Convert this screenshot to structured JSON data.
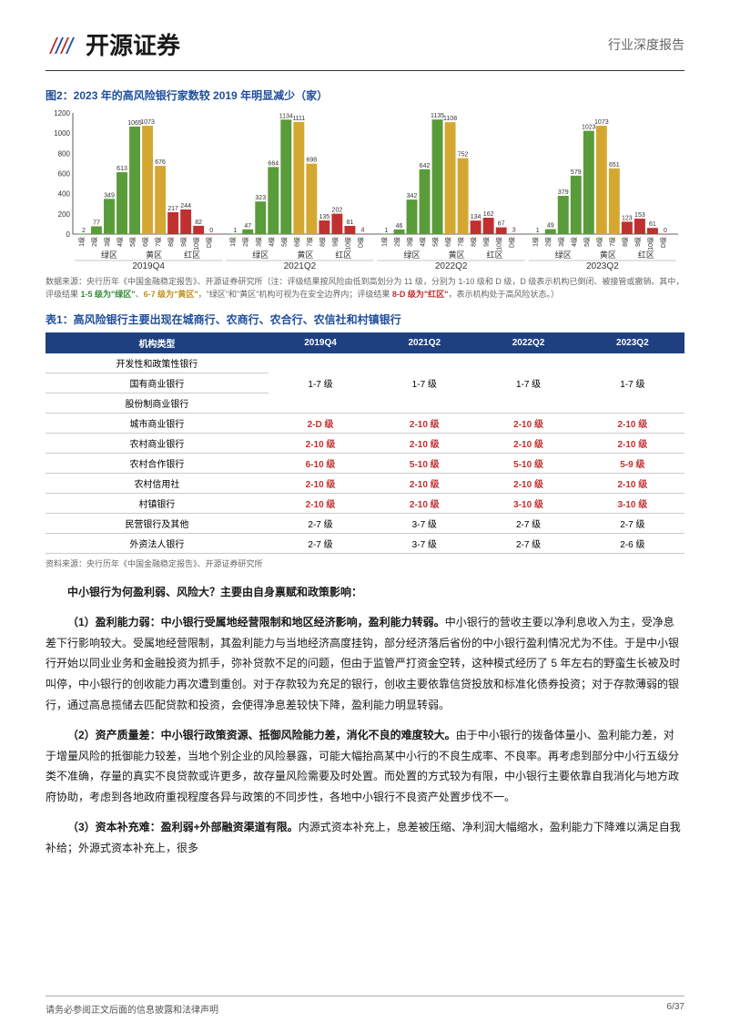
{
  "header": {
    "logo_text": "开源证券",
    "doc_type": "行业深度报告"
  },
  "figure2": {
    "title": "图2：2023 年的高风险银行家数较 2019 年明显减少（家）",
    "type": "bar",
    "ylim": [
      0,
      1200
    ],
    "ytick_step": 200,
    "background_color": "#ffffff",
    "axis_color": "#333333",
    "colors": {
      "green": "#5a9b3a",
      "yellow": "#d4a830",
      "red": "#c03030"
    },
    "category_labels": [
      "1级",
      "2级",
      "3级",
      "4级",
      "5级",
      "6级",
      "7级",
      "8级",
      "9级",
      "10级",
      "D级"
    ],
    "zones": [
      "绿区",
      "黄区",
      "红区"
    ],
    "zone_spans": [
      [
        0,
        4
      ],
      [
        5,
        6
      ],
      [
        7,
        10
      ]
    ],
    "periods": [
      {
        "label": "2019Q4",
        "values": [
          2,
          77,
          349,
          613,
          1065,
          1073,
          676,
          217,
          244,
          82,
          0
        ],
        "colors": [
          "green",
          "green",
          "green",
          "green",
          "green",
          "yellow",
          "yellow",
          "red",
          "red",
          "red",
          "red"
        ]
      },
      {
        "label": "2021Q2",
        "values": [
          1,
          47,
          323,
          664,
          1134,
          1111,
          698,
          135,
          202,
          81,
          4
        ],
        "colors": [
          "green",
          "green",
          "green",
          "green",
          "green",
          "yellow",
          "yellow",
          "red",
          "red",
          "red",
          "red"
        ]
      },
      {
        "label": "2022Q2",
        "values": [
          1,
          46,
          342,
          642,
          1135,
          1108,
          752,
          134,
          162,
          67,
          3
        ],
        "colors": [
          "green",
          "green",
          "green",
          "green",
          "green",
          "yellow",
          "yellow",
          "red",
          "red",
          "red",
          "red"
        ]
      },
      {
        "label": "2023Q2",
        "values": [
          1,
          49,
          379,
          579,
          1023,
          1073,
          651,
          123,
          153,
          61,
          0
        ],
        "colors": [
          "green",
          "green",
          "green",
          "green",
          "green",
          "yellow",
          "yellow",
          "red",
          "red",
          "red",
          "red"
        ]
      }
    ],
    "source_pre": "数据来源：央行历年《中国金融稳定报告》、开源证券研究所（注：评级结果按风险由低到高划分为 11 级，分别为 1-10 级和 D 级，D 级表示机构已倒闭、被接管或撤销。其中，评级结果 ",
    "source_green": "1-5 级为\"绿区\"",
    "source_mid1": "、",
    "source_yellow": "6-7 级为\"黄区\"",
    "source_mid2": "，\"绿区\"和\"黄区\"机构可视为在安全边界内；评级结果 ",
    "source_red": "8-D 级为\"红区\"",
    "source_post": "，表示机构处于高风险状态。）"
  },
  "table1": {
    "title": "表1：高风险银行主要出现在城商行、农商行、农合行、农信社和村镇银行",
    "columns": [
      "机构类型",
      "2019Q4",
      "2021Q2",
      "2022Q2",
      "2023Q2"
    ],
    "rows": [
      {
        "type": "开发性和政策性银行",
        "merge": true
      },
      {
        "type": "国有商业银行",
        "merge": true,
        "merged_value": "1-7 级",
        "merged_value2": "1-7 级",
        "merged_value3": "1-7 级",
        "merged_value4": "1-7 级"
      },
      {
        "type": "股份制商业银行",
        "merge": true
      },
      {
        "type": "城市商业银行",
        "c1": "2-D 级",
        "c2": "2-10 级",
        "c3": "2-10 级",
        "c4": "2-10 级",
        "red": true
      },
      {
        "type": "农村商业银行",
        "c1": "2-10 级",
        "c2": "2-10 级",
        "c3": "2-10 级",
        "c4": "2-10 级",
        "red": true
      },
      {
        "type": "农村合作银行",
        "c1": "6-10 级",
        "c2": "5-10 级",
        "c3": "5-10 级",
        "c4": "5-9 级",
        "red": true
      },
      {
        "type": "农村信用社",
        "c1": "2-10 级",
        "c2": "2-10 级",
        "c3": "2-10 级",
        "c4": "2-10 级",
        "red": true
      },
      {
        "type": "村镇银行",
        "c1": "2-10 级",
        "c2": "2-10 级",
        "c3": "3-10 级",
        "c4": "3-10 级",
        "red": true
      },
      {
        "type": "民营银行及其他",
        "c1": "2-7 级",
        "c2": "3-7 级",
        "c3": "2-7 级",
        "c4": "2-7 级",
        "red": false
      },
      {
        "type": "外资法人银行",
        "c1": "2-7 级",
        "c2": "3-7 级",
        "c3": "2-7 级",
        "c4": "2-6 级",
        "red": false
      }
    ],
    "source": "资料来源：央行历年《中国金融稳定报告》、开源证券研究所"
  },
  "body": {
    "q": "中小银行为何盈利弱、风险大？主要由自身禀赋和政策影响：",
    "p1_lead": "（1）盈利能力弱：中小银行受属地经营限制和地区经济影响，盈利能力转弱。",
    "p1": "中小银行的营收主要以净利息收入为主，受净息差下行影响较大。受属地经营限制，其盈利能力与当地经济高度挂钩，部分经济落后省份的中小银行盈利情况尤为不佳。于是中小银行开始以同业业务和金融投资为抓手，弥补贷款不足的问题，但由于监管严打资金空转，这种模式经历了 5 年左右的野蛮生长被及时叫停，中小银行的创收能力再次遭到重创。对于存款较为充足的银行，创收主要依靠信贷投放和标准化债券投资；对于存款薄弱的银行，通过高息揽储去匹配贷款和投资，会使得净息差较快下降，盈利能力明显转弱。",
    "p2_lead": "（2）资产质量差：中小银行政策资源、抵御风险能力差，消化不良的难度较大。",
    "p2": "由于中小银行的拨备体量小、盈利能力差，对于增量风险的抵御能力较差，当地个别企业的风险暴露，可能大幅抬高某中小行的不良生成率、不良率。再考虑到部分中小行五级分类不准确，存量的真实不良贷款或许更多，故存量风险需要及时处置。而处置的方式较为有限，中小银行主要依靠自我消化与地方政府协助，考虑到各地政府重视程度各异与政策的不同步性，各地中小银行不良资产处置步伐不一。",
    "p3_lead": "（3）资本补充难：盈利弱+外部融资渠道有限。",
    "p3": "内源式资本补充上，息差被压缩、净利润大幅缩水，盈利能力下降难以满足自我补给；外源式资本补充上，很多"
  },
  "footer": {
    "left": "请务必参阅正文后面的信息披露和法律声明",
    "right": "6/37"
  }
}
